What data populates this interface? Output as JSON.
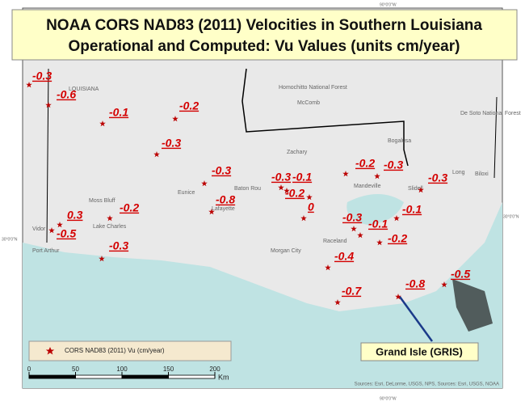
{
  "title": {
    "line1": "NOAA CORS NAD83 (2011) Velocities in Southern Louisiana",
    "line2": "Operational and Computed: Vu Values (units cm/year)"
  },
  "graticule": {
    "top": "90°0'0\"W",
    "bottom": "90°0'0\"W",
    "left": "30°0'0\"N",
    "right": "30°0'0\"N"
  },
  "places": [
    "LOUISIANA",
    "Homochitto National Forest",
    "McComb",
    "De Soto National Forest",
    "Bogalusa",
    "Zachary",
    "Baton Rou",
    "Eunice",
    "Lafayette",
    "Moss Bluff",
    "Lake Charles",
    "Vidor",
    "Port Arthur",
    "Mandeville",
    "Morgan City",
    "Raceland",
    "Slidell",
    "Biloxi",
    "Long"
  ],
  "stations": [
    {
      "value": -0.3
    },
    {
      "value": -0.6
    },
    {
      "value": -0.1
    },
    {
      "value": -0.2
    },
    {
      "value": -0.3
    },
    {
      "value": -0.3
    },
    {
      "value": -0.8
    },
    {
      "value": -0.2
    },
    {
      "value": 0.3
    },
    {
      "value": -0.5
    },
    {
      "value": -0.3
    },
    {
      "value": -0.3
    },
    {
      "value": -0.1
    },
    {
      "value": -0.2
    },
    {
      "value": 0
    },
    {
      "value": -0.2
    },
    {
      "value": -0.3
    },
    {
      "value": -0.3
    },
    {
      "value": -0.1
    },
    {
      "value": -0.3
    },
    {
      "value": -0.1
    },
    {
      "value": -0.2
    },
    {
      "value": -0.4
    },
    {
      "value": -0.7
    },
    {
      "value": -0.8
    },
    {
      "value": -0.5
    }
  ],
  "legend": {
    "label": "CORS NAD83 (2011) Vu (cm/year)"
  },
  "scale": {
    "ticks": [
      0,
      50,
      100,
      150,
      200
    ],
    "unit": "Km"
  },
  "callout": "Grand Isle (GRIS)",
  "sources": "Sources: Esri, DeLorme, USGS, NPS, Sources: Esri, USGS, NOAA"
}
